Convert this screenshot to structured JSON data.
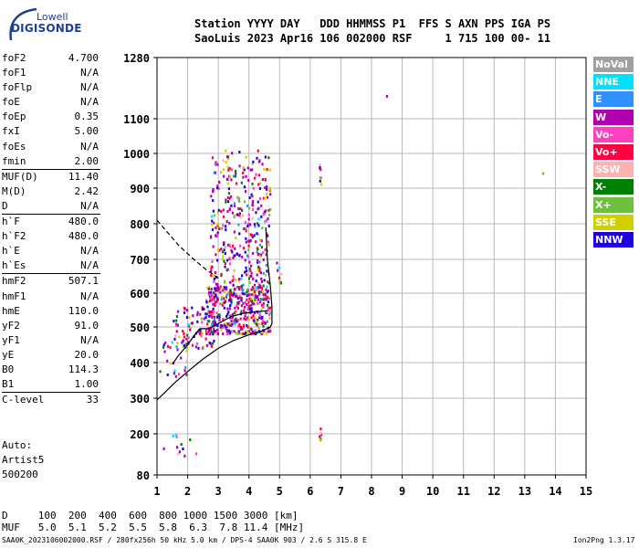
{
  "logo": {
    "line1": "Lowell",
    "line2": "DIGISONDE"
  },
  "header": {
    "labels": "Station YYYY DAY   DDD HHMMSS P1  FFS S AXN PPS IGA PS",
    "values": "SaoLuis 2023 Apr16 106 002000 RSF     1 715 100 00- 11"
  },
  "params": {
    "group1": [
      {
        "label": "foF2",
        "value": "4.700"
      },
      {
        "label": "foF1",
        "value": "N/A"
      },
      {
        "label": "foFlp",
        "value": "N/A"
      },
      {
        "label": "foE",
        "value": "N/A"
      },
      {
        "label": "foEp",
        "value": "0.35"
      },
      {
        "label": "fxI",
        "value": "5.00"
      },
      {
        "label": "foEs",
        "value": "N/A"
      },
      {
        "label": "fmin",
        "value": "2.00"
      }
    ],
    "group2": [
      {
        "label": "MUF(D)",
        "value": "11.40"
      },
      {
        "label": "M(D)",
        "value": "2.42"
      },
      {
        "label": "D",
        "value": "N/A"
      }
    ],
    "group3": [
      {
        "label": "h`F",
        "value": "480.0"
      },
      {
        "label": "h`F2",
        "value": "480.0"
      },
      {
        "label": "h`E",
        "value": "N/A"
      },
      {
        "label": "h`Es",
        "value": "N/A"
      }
    ],
    "group4": [
      {
        "label": "hmF2",
        "value": "507.1"
      },
      {
        "label": "hmF1",
        "value": "N/A"
      },
      {
        "label": "hmE",
        "value": "110.0"
      },
      {
        "label": "yF2",
        "value": "91.0"
      },
      {
        "label": "yF1",
        "value": "N/A"
      },
      {
        "label": "yE",
        "value": "20.0"
      },
      {
        "label": "B0",
        "value": "114.3"
      },
      {
        "label": "B1",
        "value": "1.00"
      }
    ],
    "group5": [
      {
        "label": "C-level",
        "value": "33"
      }
    ]
  },
  "auto": {
    "line1": "Auto:",
    "line2": "Artist5",
    "line3": "500200"
  },
  "legend": [
    {
      "label": "NoVal",
      "color": "#a0a0a0"
    },
    {
      "label": "NNE",
      "color": "#00e0ff"
    },
    {
      "label": "E",
      "color": "#3090ff"
    },
    {
      "label": "W",
      "color": "#b000b0"
    },
    {
      "label": "Vo-",
      "color": "#ff40c0"
    },
    {
      "label": "Vo+",
      "color": "#ff0040"
    },
    {
      "label": "SSW",
      "color": "#ffb0b0"
    },
    {
      "label": "X-",
      "color": "#008000"
    },
    {
      "label": "X+",
      "color": "#70c040"
    },
    {
      "label": "SSE",
      "color": "#d0d000"
    },
    {
      "label": "NNW",
      "color": "#2000e0"
    }
  ],
  "muf_table": {
    "d_row": "D     100  200  400  600  800 1000 1500 3000 [km]",
    "muf_row": "MUF   5.0  5.1  5.2  5.5  5.8  6.3  7.8 11.4 [MHz]"
  },
  "footer": {
    "left": "SAA0K_2023106002000.RSF / 280fx256h 50 kHz 5.0 km / DPS-4 SAA0K 903 / 2.6 S 315.8 E",
    "right": "Ion2Png 1.3.17"
  },
  "chart_data": {
    "type": "scatter",
    "xlim": [
      1,
      15
    ],
    "ylim": [
      80,
      1280
    ],
    "xticks": [
      "1",
      "2",
      "3",
      "4",
      "5",
      "6",
      "7",
      "8",
      "9",
      "10",
      "11",
      "12",
      "13",
      "14",
      "15"
    ],
    "yticks": [
      {
        "value": 80,
        "label": "80"
      },
      {
        "value": 200,
        "label": "200"
      },
      {
        "value": 300,
        "label": "300"
      },
      {
        "value": 400,
        "label": "400"
      },
      {
        "value": 500,
        "label": "500"
      },
      {
        "value": 600,
        "label": "600"
      },
      {
        "value": 700,
        "label": "700"
      },
      {
        "value": 800,
        "label": "800"
      },
      {
        "value": 900,
        "label": "900"
      },
      {
        "value": 1000,
        "label": "1000"
      },
      {
        "value": 1100,
        "label": "1100"
      },
      {
        "value": 1280,
        "label": "1280"
      }
    ],
    "grid": true,
    "scale_heights": [
      80,
      200,
      300,
      400,
      500,
      600,
      700,
      800,
      900,
      1000,
      1100,
      1280
    ],
    "profile_curve": [
      [
        1.0,
        295
      ],
      [
        1.3,
        320
      ],
      [
        1.6,
        345
      ],
      [
        2.0,
        375
      ],
      [
        2.5,
        410
      ],
      [
        3.0,
        440
      ],
      [
        3.5,
        462
      ],
      [
        4.0,
        478
      ],
      [
        4.4,
        488
      ],
      [
        4.7,
        500
      ],
      [
        4.75,
        510
      ],
      [
        4.75,
        560
      ],
      [
        4.7,
        620
      ],
      [
        4.6,
        700
      ],
      [
        4.55,
        790
      ]
    ],
    "dashed_curve": [
      [
        1.0,
        810
      ],
      [
        1.3,
        780
      ],
      [
        1.7,
        740
      ],
      [
        2.2,
        700
      ],
      [
        2.6,
        670
      ],
      [
        3.0,
        645
      ]
    ],
    "trace_curve": [
      [
        1.5,
        395
      ],
      [
        1.7,
        420
      ],
      [
        2.0,
        450
      ],
      [
        2.2,
        475
      ],
      [
        2.4,
        495
      ],
      [
        2.7,
        495
      ],
      [
        3.0,
        510
      ],
      [
        3.4,
        530
      ],
      [
        3.8,
        540
      ],
      [
        4.2,
        545
      ],
      [
        4.6,
        548
      ]
    ],
    "clusters": [
      {
        "x": [
          2.75,
          4.7
        ],
        "y": [
          580,
          1010
        ],
        "n": 420
      },
      {
        "x": [
          2.6,
          4.7
        ],
        "y": [
          480,
          620
        ],
        "n": 380
      },
      {
        "x": [
          1.5,
          2.9
        ],
        "y": [
          440,
          560
        ],
        "n": 90
      },
      {
        "x": [
          1.1,
          2.0
        ],
        "y": [
          360,
          460
        ],
        "n": 30
      },
      {
        "x": [
          6.3,
          6.36
        ],
        "y": [
          900,
          970
        ],
        "n": 8
      },
      {
        "x": [
          6.3,
          6.36
        ],
        "y": [
          180,
          215
        ],
        "n": 8
      },
      {
        "x": [
          1.2,
          2.3
        ],
        "y": [
          135,
          200
        ],
        "n": 12
      },
      {
        "x": [
          4.9,
          5.1
        ],
        "y": [
          630,
          720
        ],
        "n": 8
      }
    ],
    "isolated_points": [
      [
        8.5,
        1166,
        "#b000b0"
      ],
      [
        13.6,
        942,
        "#70c040"
      ]
    ]
  }
}
